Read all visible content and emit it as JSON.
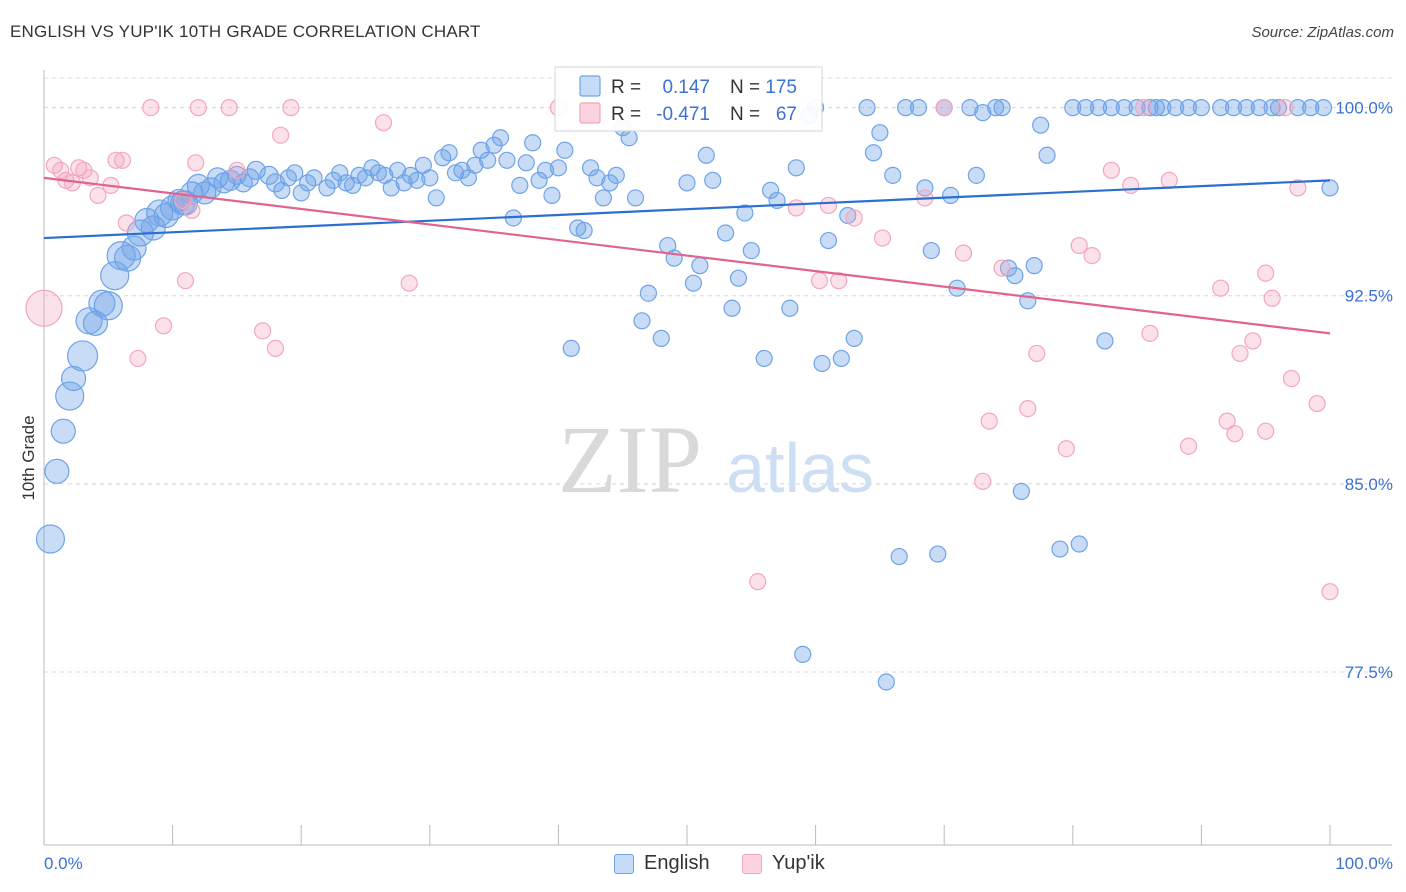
{
  "title": "ENGLISH VS YUP'IK 10TH GRADE CORRELATION CHART",
  "source": "Source: ZipAtlas.com",
  "colors": {
    "english": "#6fa3e8",
    "english_line": "#2b6fd1",
    "yupik": "#f4a6bf",
    "yupik_line": "#e0648f",
    "tick_text": "#3b72d1",
    "grid": "#d8d8d8"
  },
  "stats_box": {
    "english": {
      "r_label": "R =",
      "r_value": "0.147",
      "n_label": "N =",
      "n_value": "175"
    },
    "yupik": {
      "r_label": "R =",
      "r_value": "-0.471",
      "n_label": "N =",
      "n_value": "67"
    }
  },
  "legend": {
    "english": "English",
    "yupik": "Yup'ik"
  },
  "watermark": {
    "zip": "ZIP",
    "atlas": "atlas"
  },
  "chart_data": {
    "type": "scatter",
    "title": "ENGLISH VS YUP'IK 10TH GRADE CORRELATION CHART",
    "xlabel": "",
    "ylabel": "10th Grade",
    "xlim": [
      0,
      100
    ],
    "ylim": [
      70.6,
      101.5
    ],
    "x_tick_labels": [
      "0.0%",
      "100.0%"
    ],
    "y_ticks": [
      100.0,
      92.5,
      85.0,
      77.5
    ],
    "y_tick_labels": [
      "100.0%",
      "92.5%",
      "85.0%",
      "77.5%"
    ],
    "grid": true,
    "series": [
      {
        "name": "English",
        "r": 0.147,
        "n": 175,
        "trend": {
          "x": [
            0,
            100
          ],
          "y": [
            94.8,
            97.1
          ]
        },
        "points": [
          [
            0.5,
            82.8,
            14
          ],
          [
            1.0,
            85.5,
            12
          ],
          [
            1.5,
            87.1,
            12
          ],
          [
            2.0,
            88.5,
            14
          ],
          [
            2.3,
            89.2,
            12
          ],
          [
            3.0,
            90.1,
            15
          ],
          [
            3.5,
            91.5,
            13
          ],
          [
            4.0,
            91.4,
            12
          ],
          [
            4.5,
            92.2,
            13
          ],
          [
            5.0,
            92.1,
            14
          ],
          [
            5.5,
            93.3,
            14
          ],
          [
            6.0,
            94.1,
            14
          ],
          [
            6.5,
            94.0,
            13
          ],
          [
            7.0,
            94.4,
            12
          ],
          [
            7.5,
            95.0,
            13
          ],
          [
            8.0,
            95.5,
            12
          ],
          [
            8.5,
            95.2,
            12
          ],
          [
            9.0,
            95.8,
            13
          ],
          [
            9.5,
            95.7,
            12
          ],
          [
            10.0,
            96.0,
            12
          ],
          [
            10.5,
            96.3,
            11
          ],
          [
            11.0,
            96.2,
            12
          ],
          [
            11.5,
            96.6,
            11
          ],
          [
            12.0,
            96.9,
            11
          ],
          [
            12.5,
            96.6,
            11
          ],
          [
            13.0,
            96.8,
            10
          ],
          [
            13.5,
            97.2,
            10
          ],
          [
            14.0,
            97.0,
            10
          ],
          [
            14.5,
            97.1,
            10
          ],
          [
            15.0,
            97.3,
            9
          ],
          [
            15.5,
            97.0,
            9
          ],
          [
            16.0,
            97.2,
            9
          ],
          [
            16.5,
            97.5,
            9
          ],
          [
            17.5,
            97.3,
            9
          ],
          [
            18.0,
            97.0,
            9
          ],
          [
            18.5,
            96.7,
            8
          ],
          [
            19.0,
            97.2,
            8
          ],
          [
            19.5,
            97.4,
            8
          ],
          [
            20.0,
            96.6,
            8
          ],
          [
            20.5,
            97.0,
            8
          ],
          [
            21.0,
            97.2,
            8
          ],
          [
            22.0,
            96.8,
            8
          ],
          [
            22.5,
            97.1,
            8
          ],
          [
            23.0,
            97.4,
            8
          ],
          [
            23.5,
            97.0,
            8
          ],
          [
            24.0,
            96.9,
            8
          ],
          [
            24.5,
            97.3,
            8
          ],
          [
            25.0,
            97.2,
            8
          ],
          [
            25.5,
            97.6,
            8
          ],
          [
            26.0,
            97.4,
            8
          ],
          [
            26.5,
            97.3,
            8
          ],
          [
            27.0,
            96.8,
            8
          ],
          [
            27.5,
            97.5,
            8
          ],
          [
            28.0,
            97.0,
            8
          ],
          [
            28.5,
            97.3,
            8
          ],
          [
            29.0,
            97.1,
            8
          ],
          [
            29.5,
            97.7,
            8
          ],
          [
            30.0,
            97.2,
            8
          ],
          [
            30.5,
            96.4,
            8
          ],
          [
            31.0,
            98.0,
            8
          ],
          [
            31.5,
            98.2,
            8
          ],
          [
            32.0,
            97.4,
            8
          ],
          [
            32.5,
            97.5,
            8
          ],
          [
            33.0,
            97.2,
            8
          ],
          [
            33.5,
            97.7,
            8
          ],
          [
            34.0,
            98.3,
            8
          ],
          [
            34.5,
            97.9,
            8
          ],
          [
            35.0,
            98.5,
            8
          ],
          [
            35.5,
            98.8,
            8
          ],
          [
            36.0,
            97.9,
            8
          ],
          [
            36.5,
            95.6,
            8
          ],
          [
            37.0,
            96.9,
            8
          ],
          [
            37.5,
            97.8,
            8
          ],
          [
            38.0,
            98.6,
            8
          ],
          [
            38.5,
            97.1,
            8
          ],
          [
            39.0,
            97.5,
            8
          ],
          [
            39.5,
            96.5,
            8
          ],
          [
            40.0,
            97.6,
            8
          ],
          [
            40.5,
            98.3,
            8
          ],
          [
            41.0,
            90.4,
            8
          ],
          [
            41.5,
            95.2,
            8
          ],
          [
            42.0,
            95.1,
            8
          ],
          [
            42.5,
            97.6,
            8
          ],
          [
            43.0,
            97.2,
            8
          ],
          [
            43.5,
            96.4,
            8
          ],
          [
            44.0,
            97.0,
            8
          ],
          [
            44.5,
            97.3,
            8
          ],
          [
            45.0,
            99.2,
            8
          ],
          [
            45.5,
            98.8,
            8
          ],
          [
            46.0,
            96.4,
            8
          ],
          [
            46.5,
            91.5,
            8
          ],
          [
            47.0,
            92.6,
            8
          ],
          [
            48.0,
            90.8,
            8
          ],
          [
            48.5,
            94.5,
            8
          ],
          [
            49.0,
            94.0,
            8
          ],
          [
            50.0,
            97.0,
            8
          ],
          [
            50.5,
            93.0,
            8
          ],
          [
            51.0,
            93.7,
            8
          ],
          [
            51.5,
            98.1,
            8
          ],
          [
            52.0,
            97.1,
            8
          ],
          [
            53.0,
            95.0,
            8
          ],
          [
            53.5,
            92.0,
            8
          ],
          [
            54.0,
            93.2,
            8
          ],
          [
            54.5,
            95.8,
            8
          ],
          [
            55.0,
            94.3,
            8
          ],
          [
            56.0,
            90.0,
            8
          ],
          [
            56.5,
            96.7,
            8
          ],
          [
            57.0,
            96.3,
            8
          ],
          [
            58.0,
            92.0,
            8
          ],
          [
            58.5,
            97.6,
            8
          ],
          [
            59.0,
            78.2,
            8
          ],
          [
            59.5,
            99.7,
            8
          ],
          [
            60.0,
            100.0,
            8
          ],
          [
            60.5,
            89.8,
            8
          ],
          [
            61.0,
            94.7,
            8
          ],
          [
            62.0,
            90.0,
            8
          ],
          [
            62.5,
            95.7,
            8
          ],
          [
            63.0,
            90.8,
            8
          ],
          [
            64.0,
            100.0,
            8
          ],
          [
            64.5,
            98.2,
            8
          ],
          [
            65.0,
            99.0,
            8
          ],
          [
            65.5,
            77.1,
            8
          ],
          [
            66.0,
            97.3,
            8
          ],
          [
            66.5,
            82.1,
            8
          ],
          [
            67.0,
            100.0,
            8
          ],
          [
            68.0,
            100.0,
            8
          ],
          [
            68.5,
            96.8,
            8
          ],
          [
            69.0,
            94.3,
            8
          ],
          [
            69.5,
            82.2,
            8
          ],
          [
            70.0,
            100.0,
            8
          ],
          [
            70.5,
            96.5,
            8
          ],
          [
            71.0,
            92.8,
            8
          ],
          [
            72.0,
            100.0,
            8
          ],
          [
            72.5,
            97.3,
            8
          ],
          [
            73.0,
            99.8,
            8
          ],
          [
            74.0,
            100.0,
            8
          ],
          [
            74.5,
            100.0,
            8
          ],
          [
            75.0,
            93.6,
            8
          ],
          [
            75.5,
            93.3,
            8
          ],
          [
            76.0,
            84.7,
            8
          ],
          [
            76.5,
            92.3,
            8
          ],
          [
            77.0,
            93.7,
            8
          ],
          [
            77.5,
            99.3,
            8
          ],
          [
            78.0,
            98.1,
            8
          ],
          [
            79.0,
            82.4,
            8
          ],
          [
            80.0,
            100.0,
            8
          ],
          [
            80.5,
            82.6,
            8
          ],
          [
            81.0,
            100.0,
            8
          ],
          [
            82.0,
            100.0,
            8
          ],
          [
            82.5,
            90.7,
            8
          ],
          [
            83.0,
            100.0,
            8
          ],
          [
            84.0,
            100.0,
            8
          ],
          [
            85.0,
            100.0,
            8
          ],
          [
            86.0,
            100.0,
            8
          ],
          [
            86.5,
            100.0,
            8
          ],
          [
            87.0,
            100.0,
            8
          ],
          [
            88.0,
            100.0,
            8
          ],
          [
            89.0,
            100.0,
            8
          ],
          [
            90.0,
            100.0,
            8
          ],
          [
            91.5,
            100.0,
            8
          ],
          [
            92.5,
            100.0,
            8
          ],
          [
            93.5,
            100.0,
            8
          ],
          [
            94.5,
            100.0,
            8
          ],
          [
            95.5,
            100.0,
            8
          ],
          [
            96.0,
            100.0,
            8
          ],
          [
            97.5,
            100.0,
            8
          ],
          [
            98.5,
            100.0,
            8
          ],
          [
            99.5,
            100.0,
            8
          ],
          [
            100.0,
            96.8,
            8
          ],
          [
            10.8,
            96.2,
            12
          ]
        ]
      },
      {
        "name": "Yup'ik",
        "r": -0.471,
        "n": 67,
        "trend": {
          "x": [
            0,
            100
          ],
          "y": [
            97.2,
            91.0
          ]
        },
        "points": [
          [
            0.0,
            92.0,
            18
          ],
          [
            0.8,
            97.7,
            8
          ],
          [
            1.3,
            97.5,
            8
          ],
          [
            1.7,
            97.1,
            8
          ],
          [
            2.2,
            97.0,
            8
          ],
          [
            2.7,
            97.6,
            8
          ],
          [
            3.1,
            97.5,
            8
          ],
          [
            3.6,
            97.2,
            8
          ],
          [
            4.2,
            96.5,
            8
          ],
          [
            5.2,
            96.9,
            8
          ],
          [
            5.6,
            97.9,
            8
          ],
          [
            6.1,
            97.9,
            8
          ],
          [
            6.4,
            95.4,
            8
          ],
          [
            7.3,
            90.0,
            8
          ],
          [
            8.3,
            100.0,
            8
          ],
          [
            9.3,
            91.3,
            8
          ],
          [
            10.8,
            96.3,
            8
          ],
          [
            11.0,
            93.1,
            8
          ],
          [
            11.8,
            97.8,
            8
          ],
          [
            11.5,
            95.9,
            8
          ],
          [
            12.0,
            100.0,
            8
          ],
          [
            14.4,
            100.0,
            8
          ],
          [
            15.0,
            97.5,
            8
          ],
          [
            17.0,
            91.1,
            8
          ],
          [
            18.0,
            90.4,
            8
          ],
          [
            18.4,
            98.9,
            8
          ],
          [
            19.2,
            100.0,
            8
          ],
          [
            28.4,
            93.0,
            8
          ],
          [
            26.4,
            99.4,
            8
          ],
          [
            40.0,
            100.0,
            8
          ],
          [
            55.5,
            81.1,
            8
          ],
          [
            58.5,
            96.0,
            8
          ],
          [
            60.3,
            93.1,
            8
          ],
          [
            61.0,
            96.1,
            8
          ],
          [
            61.8,
            93.1,
            8
          ],
          [
            63.0,
            95.6,
            8
          ],
          [
            65.2,
            94.8,
            8
          ],
          [
            68.5,
            96.4,
            8
          ],
          [
            70.0,
            100.0,
            8
          ],
          [
            71.5,
            94.2,
            8
          ],
          [
            73.0,
            85.1,
            8
          ],
          [
            73.5,
            87.5,
            8
          ],
          [
            74.5,
            93.6,
            8
          ],
          [
            76.5,
            88.0,
            8
          ],
          [
            77.2,
            90.2,
            8
          ],
          [
            79.5,
            86.4,
            8
          ],
          [
            80.5,
            94.5,
            8
          ],
          [
            81.5,
            94.1,
            8
          ],
          [
            83.0,
            97.5,
            8
          ],
          [
            84.5,
            96.9,
            8
          ],
          [
            85.5,
            100.0,
            8
          ],
          [
            86.0,
            91.0,
            8
          ],
          [
            87.5,
            97.1,
            8
          ],
          [
            89.0,
            86.5,
            8
          ],
          [
            91.5,
            92.8,
            8
          ],
          [
            92.0,
            87.5,
            8
          ],
          [
            92.6,
            87.0,
            8
          ],
          [
            93.0,
            90.2,
            8
          ],
          [
            94.0,
            90.7,
            8
          ],
          [
            95.0,
            93.4,
            8
          ],
          [
            95.5,
            92.4,
            8
          ],
          [
            95.0,
            87.1,
            8
          ],
          [
            96.5,
            100.0,
            8
          ],
          [
            97.0,
            89.2,
            8
          ],
          [
            97.5,
            96.8,
            8
          ],
          [
            99.0,
            88.2,
            8
          ],
          [
            100.0,
            80.7,
            8
          ]
        ]
      }
    ]
  }
}
